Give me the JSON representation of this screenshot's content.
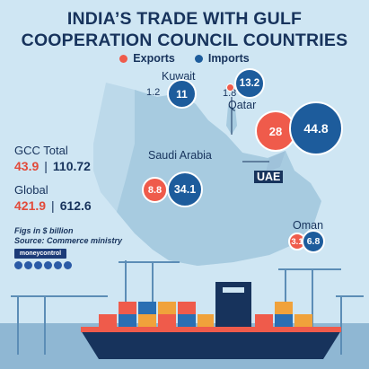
{
  "title_line1": "INDIA’S TRADE WITH GULF",
  "title_line2": "COOPERATION COUNCIL COUNTRIES",
  "legend": {
    "exports_label": "Exports",
    "imports_label": "Imports",
    "exports_color": "#ef5b4b",
    "imports_color": "#1d5c9c"
  },
  "countries": {
    "kuwait": "Kuwait",
    "qatar": "Qatar",
    "saudi": "Saudi Arabia",
    "uae": "UAE",
    "oman": "Oman"
  },
  "stats": {
    "gcc_label": "GCC Total",
    "gcc_exports": "43.9",
    "gcc_imports": "110.72",
    "global_label": "Global",
    "global_exports": "421.9",
    "global_imports": "612.6",
    "separator": "|"
  },
  "notes": {
    "units": "Figs in $ billion",
    "source": "Source: Commerce ministry"
  },
  "brand": "moneycontrol",
  "chart_data": {
    "type": "bubble",
    "title": "INDIA’S TRADE WITH GULF COOPERATION COUNCIL COUNTRIES",
    "units": "$ billion",
    "series": [
      {
        "name": "Exports",
        "values": {
          "Kuwait": 1.2,
          "Qatar": 1.8,
          "UAE": 28,
          "Saudi Arabia": 8.8,
          "Oman": 3.1
        }
      },
      {
        "name": "Imports",
        "values": {
          "Kuwait": 11,
          "Qatar": 13.2,
          "UAE": 44.8,
          "Saudi Arabia": 34.1,
          "Oman": 6.8
        }
      }
    ],
    "totals": {
      "GCC Total": {
        "exports": 43.9,
        "imports": 110.72
      },
      "Global": {
        "exports": 421.9,
        "imports": 612.6
      }
    }
  }
}
